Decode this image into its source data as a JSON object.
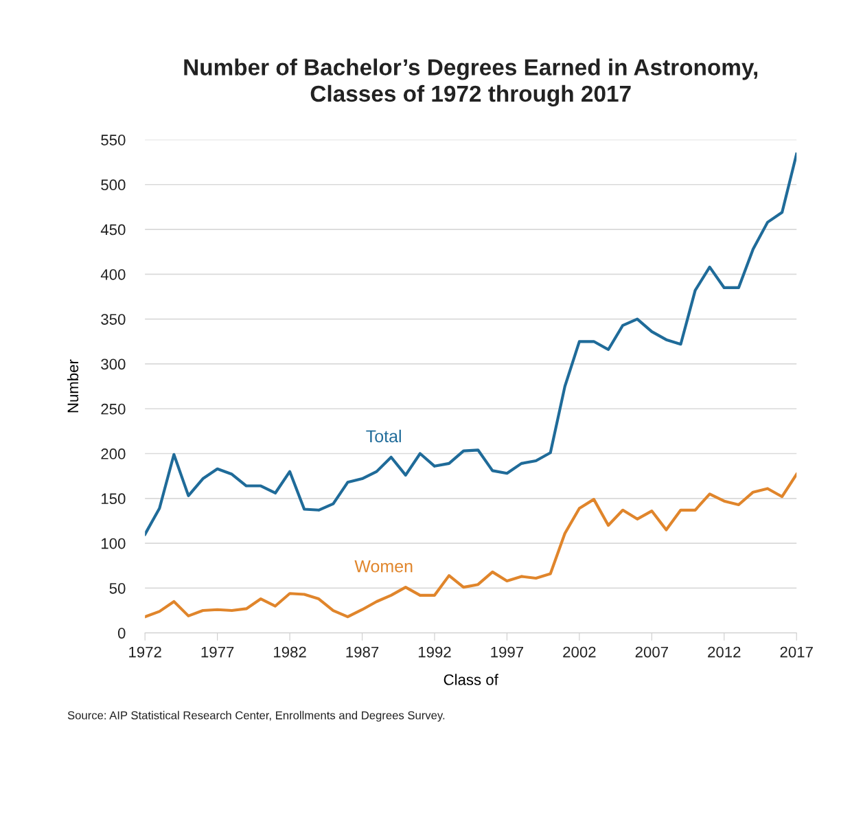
{
  "chart_data": {
    "type": "line",
    "title": "Number of Bachelor’s Degrees Earned in Astronomy,\nClasses of 1972 through 2017",
    "xlabel": "Class of",
    "ylabel": "Number",
    "x": [
      1972,
      1973,
      1974,
      1975,
      1976,
      1977,
      1978,
      1979,
      1980,
      1981,
      1982,
      1983,
      1984,
      1985,
      1986,
      1987,
      1988,
      1989,
      1990,
      1991,
      1992,
      1993,
      1994,
      1995,
      1996,
      1997,
      1998,
      1999,
      2000,
      2001,
      2002,
      2003,
      2004,
      2005,
      2006,
      2007,
      2008,
      2009,
      2010,
      2011,
      2012,
      2013,
      2014,
      2015,
      2016,
      2017
    ],
    "series": [
      {
        "name": "Total",
        "color": "#1f6b99",
        "values": [
          110,
          139,
          199,
          153,
          172,
          183,
          177,
          164,
          164,
          156,
          180,
          138,
          137,
          144,
          168,
          172,
          180,
          196,
          176,
          200,
          186,
          189,
          203,
          204,
          181,
          178,
          189,
          192,
          201,
          275,
          325,
          325,
          316,
          343,
          350,
          336,
          327,
          322,
          382,
          408,
          385,
          385,
          428,
          458,
          469,
          534
        ]
      },
      {
        "name": "Women",
        "color": "#e0852b",
        "values": [
          18,
          24,
          35,
          19,
          25,
          26,
          25,
          27,
          38,
          30,
          44,
          43,
          38,
          25,
          18,
          26,
          35,
          42,
          51,
          42,
          42,
          64,
          51,
          54,
          68,
          58,
          63,
          61,
          66,
          111,
          139,
          149,
          120,
          137,
          127,
          136,
          115,
          137,
          137,
          155,
          147,
          143,
          157,
          161,
          152,
          177
        ]
      }
    ],
    "xlim": [
      1972,
      2017
    ],
    "xticks": [
      1972,
      1977,
      1982,
      1987,
      1992,
      1997,
      2002,
      2007,
      2012,
      2017
    ],
    "ylim": [
      0,
      550
    ],
    "yticks": [
      0,
      50,
      100,
      150,
      200,
      250,
      300,
      350,
      400,
      450,
      500,
      550
    ],
    "grid": "y",
    "legend": false,
    "marker": "none",
    "line_style": "solid",
    "annotations": [
      "Source: AIP Statistical Research Center, Enrollments and Degrees Survey."
    ]
  }
}
